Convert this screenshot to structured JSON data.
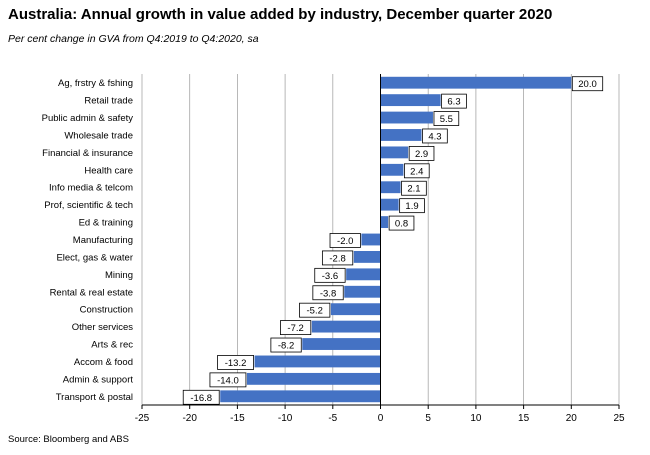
{
  "title": "Australia:  Annual growth in value added by industry, December quarter 2020",
  "subtitle": "Per cent change in GVA from Q4:2019 to Q4:2020, sa",
  "source": "Source: Bloomberg and ABS",
  "colors": {
    "bar": "#4472C4",
    "grid": "#a6a6a6",
    "axis": "#000000"
  },
  "chart_data": {
    "type": "bar",
    "orientation": "horizontal",
    "categories": [
      "Ag, frstry & fshing",
      "Retail trade",
      "Public admin & safety",
      "Wholesale trade",
      "Financial & insurance",
      "Health care",
      "Info media & telcom",
      "Prof, scientific & tech",
      "Ed & training",
      "Manufacturing",
      "Elect, gas & water",
      "Mining",
      "Rental & real estate",
      "Construction",
      "Other services",
      "Arts & rec",
      "Accom & food",
      "Admin & support",
      "Transport & postal"
    ],
    "values": [
      20.0,
      6.3,
      5.5,
      4.3,
      2.9,
      2.4,
      2.1,
      1.9,
      0.8,
      -2.0,
      -2.8,
      -3.6,
      -3.8,
      -5.2,
      -7.2,
      -8.2,
      -13.2,
      -14.0,
      -16.8
    ],
    "value_labels": [
      "20.0",
      "6.3",
      "5.5",
      "4.3",
      "2.9",
      "2.4",
      "2.1",
      "1.9",
      "0.8",
      "-2.0",
      "-2.8",
      "-3.6",
      "-3.8",
      "-5.2",
      "-7.2",
      "-8.2",
      "-13.2",
      "-14.0",
      "-16.8"
    ],
    "xlim": [
      -25,
      25
    ],
    "xticks": [
      -25,
      -20,
      -15,
      -10,
      -5,
      0,
      5,
      10,
      15,
      20,
      25
    ],
    "xtick_labels": [
      "-25",
      "-20",
      "-15",
      "-10",
      "-5",
      "0",
      "5",
      "10",
      "15",
      "20",
      "25"
    ],
    "grid": "vertical",
    "legend": "none"
  }
}
